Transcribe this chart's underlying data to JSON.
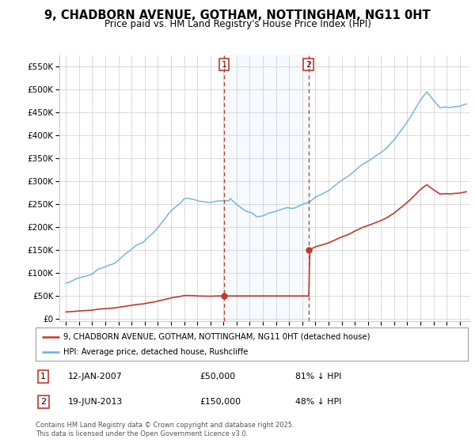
{
  "title": "9, CHADBORN AVENUE, GOTHAM, NOTTINGHAM, NG11 0HT",
  "subtitle": "Price paid vs. HM Land Registry's House Price Index (HPI)",
  "purchase1_date": "12-JAN-2007",
  "purchase1_price": 50000,
  "purchase1_label": "81% ↓ HPI",
  "purchase1_year": 2007.04,
  "purchase2_date": "19-JUN-2013",
  "purchase2_price": 150000,
  "purchase2_label": "48% ↓ HPI",
  "purchase2_year": 2013.47,
  "legend1": "9, CHADBORN AVENUE, GOTHAM, NOTTINGHAM, NG11 0HT (detached house)",
  "legend2": "HPI: Average price, detached house, Rushcliffe",
  "footer": "Contains HM Land Registry data © Crown copyright and database right 2025.\nThis data is licensed under the Open Government Licence v3.0.",
  "hpi_color": "#6ab0de",
  "price_color": "#c0392b",
  "bg_color": "#ffffff",
  "grid_color": "#cccccc",
  "ylim_max": 575000,
  "ylim_min": -5000,
  "xlim_min": 1994.5,
  "xlim_max": 2025.8
}
